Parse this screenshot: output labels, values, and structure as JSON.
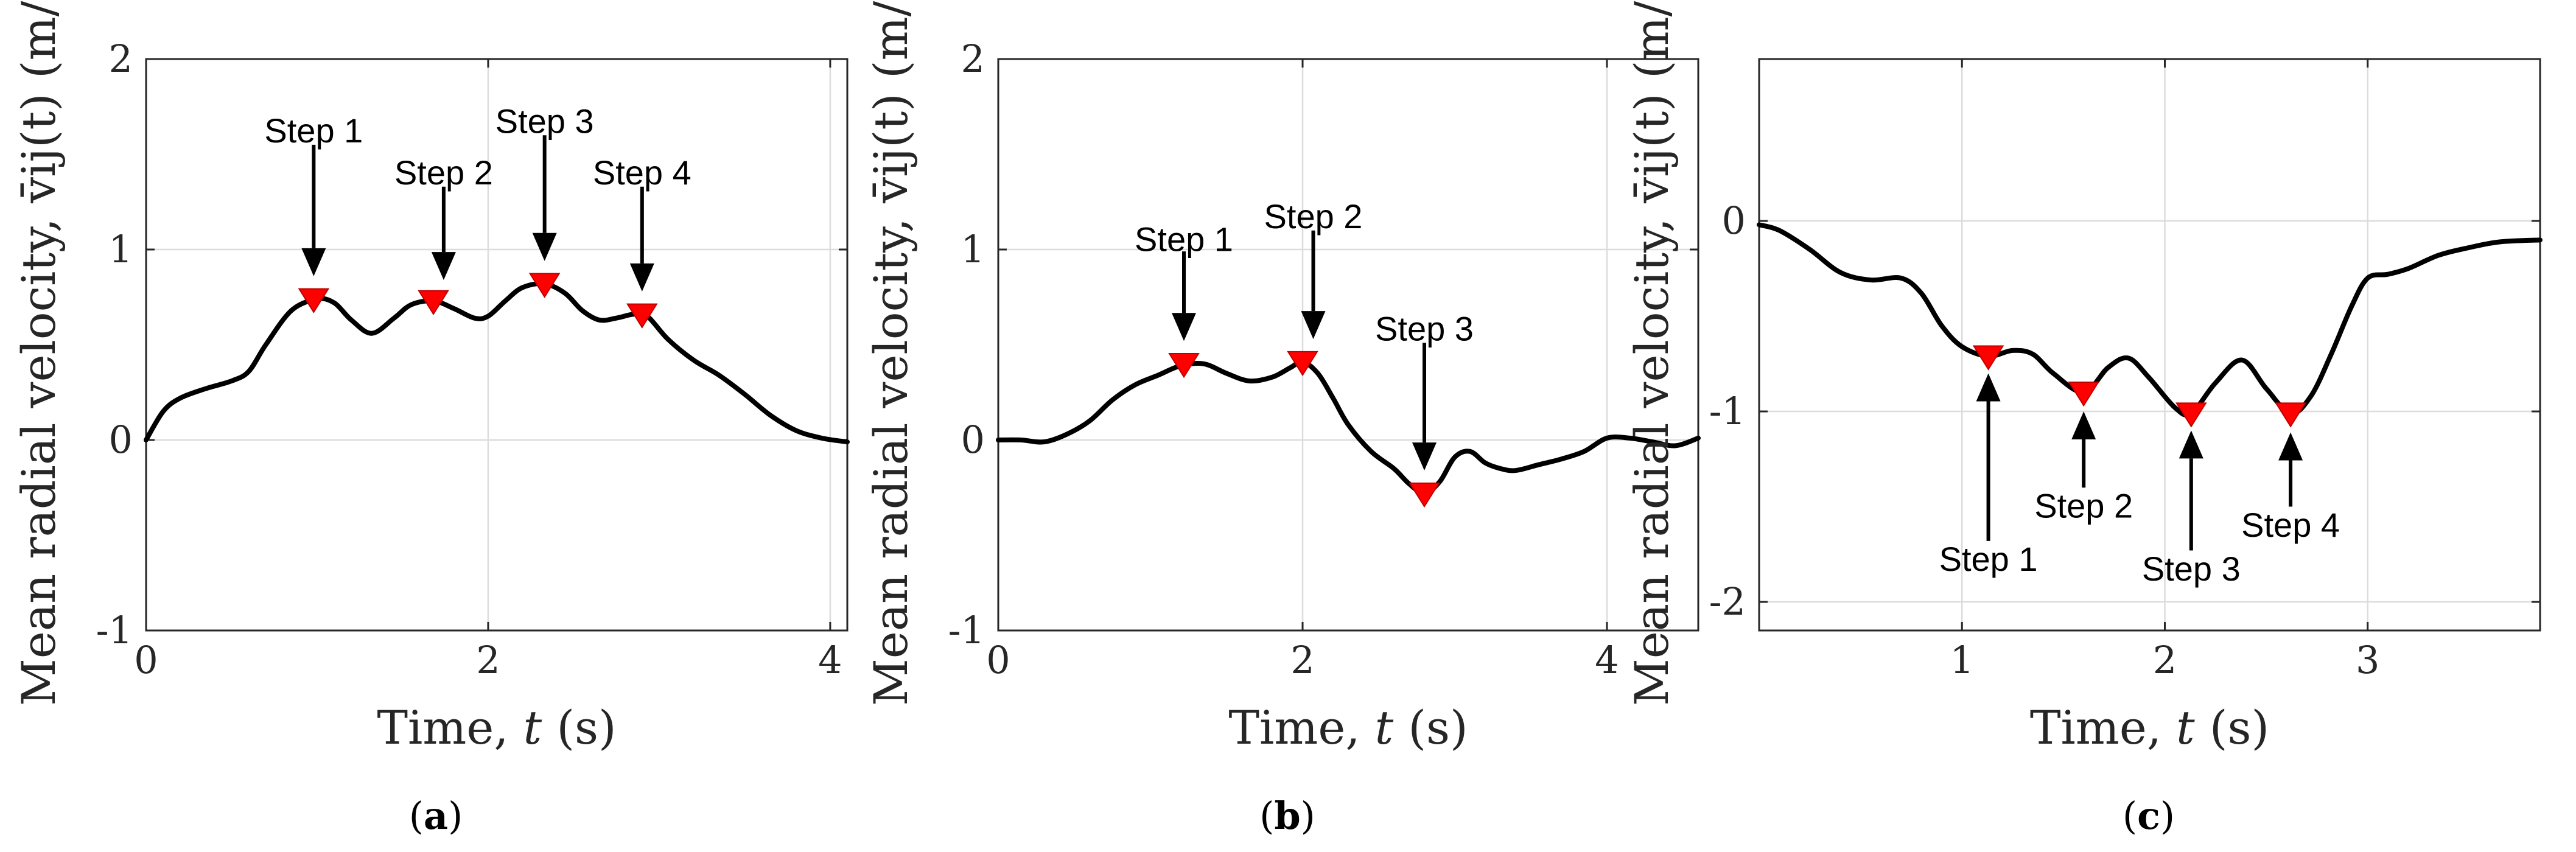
{
  "chart_data": [
    {
      "type": "line",
      "panel_label": "a",
      "xlabel": "Time, t (s)",
      "ylabel": "Mean radial velocity, v̄ij(t) (m/s)",
      "xlim": [
        0,
        4.1
      ],
      "ylim": [
        -1,
        2
      ],
      "xticks": [
        0,
        2,
        4
      ],
      "yticks": [
        -1,
        0,
        1,
        2
      ],
      "grid": true,
      "series": [
        {
          "x": [
            0,
            0.1,
            0.2,
            0.35,
            0.5,
            0.6,
            0.7,
            0.85,
            1.0,
            1.1,
            1.2,
            1.32,
            1.45,
            1.55,
            1.68,
            1.8,
            1.92,
            2.0,
            2.1,
            2.2,
            2.33,
            2.45,
            2.55,
            2.65,
            2.75,
            2.85,
            2.93,
            3.05,
            3.2,
            3.35,
            3.5,
            3.65,
            3.8,
            3.95,
            4.1
          ],
          "y": [
            0,
            0.15,
            0.22,
            0.27,
            0.31,
            0.36,
            0.5,
            0.68,
            0.74,
            0.72,
            0.63,
            0.56,
            0.64,
            0.71,
            0.73,
            0.69,
            0.64,
            0.65,
            0.73,
            0.8,
            0.82,
            0.77,
            0.68,
            0.63,
            0.64,
            0.66,
            0.65,
            0.53,
            0.42,
            0.34,
            0.24,
            0.13,
            0.05,
            0.01,
            -0.01
          ]
        }
      ],
      "markers": [
        {
          "x": 0.98,
          "y": 0.74,
          "label": "Step 1"
        },
        {
          "x": 1.68,
          "y": 0.73,
          "label": "Step 2"
        },
        {
          "x": 2.33,
          "y": 0.82,
          "label": "Step 3"
        },
        {
          "x": 2.9,
          "y": 0.66,
          "label": "Step 4"
        }
      ],
      "annotations": [
        {
          "text": "Step 1",
          "x": 0.98,
          "y": 1.62,
          "arrow_from_y": 1.55,
          "arrow_to_y": 0.86
        },
        {
          "text": "Step 2",
          "x": 1.74,
          "y": 1.4,
          "arrow_from_y": 1.33,
          "arrow_to_y": 0.84
        },
        {
          "text": "Step 3",
          "x": 2.33,
          "y": 1.67,
          "arrow_from_y": 1.6,
          "arrow_to_y": 0.94
        },
        {
          "text": "Step 4",
          "x": 2.9,
          "y": 1.4,
          "arrow_from_y": 1.33,
          "arrow_to_y": 0.78
        }
      ]
    },
    {
      "type": "line",
      "panel_label": "b",
      "xlabel": "Time, t (s)",
      "ylabel": "Mean radial velocity, v̄ij(t) (m/s)",
      "xlim": [
        0,
        4.6
      ],
      "ylim": [
        -1,
        2
      ],
      "xticks": [
        0,
        2,
        4
      ],
      "yticks": [
        -1,
        0,
        1,
        2
      ],
      "grid": true,
      "series": [
        {
          "x": [
            0,
            0.15,
            0.3,
            0.45,
            0.6,
            0.75,
            0.9,
            1.05,
            1.2,
            1.35,
            1.5,
            1.65,
            1.8,
            1.92,
            2.0,
            2.1,
            2.2,
            2.3,
            2.45,
            2.6,
            2.7,
            2.8,
            2.9,
            3.0,
            3.1,
            3.2,
            3.3,
            3.4,
            3.55,
            3.7,
            3.85,
            4.0,
            4.15,
            4.3,
            4.45,
            4.6
          ],
          "y": [
            0.0,
            0.0,
            -0.01,
            0.03,
            0.1,
            0.21,
            0.29,
            0.34,
            0.39,
            0.4,
            0.35,
            0.31,
            0.33,
            0.38,
            0.41,
            0.35,
            0.22,
            0.08,
            -0.06,
            -0.15,
            -0.23,
            -0.28,
            -0.22,
            -0.09,
            -0.06,
            -0.12,
            -0.15,
            -0.16,
            -0.13,
            -0.1,
            -0.06,
            0.01,
            0.01,
            -0.01,
            -0.03,
            0.01
          ]
        }
      ],
      "markers": [
        {
          "x": 1.22,
          "y": 0.4,
          "label": "Step 1"
        },
        {
          "x": 2.0,
          "y": 0.41,
          "label": "Step 2"
        },
        {
          "x": 2.8,
          "y": -0.28,
          "label": "Step 3"
        }
      ],
      "annotations": [
        {
          "text": "Step 1",
          "x": 1.22,
          "y": 1.05,
          "arrow_from_y": 0.99,
          "arrow_to_y": 0.52
        },
        {
          "text": "Step 2",
          "x": 2.07,
          "y": 1.17,
          "arrow_from_y": 1.1,
          "arrow_to_y": 0.53
        },
        {
          "text": "Step 3",
          "x": 2.8,
          "y": 0.58,
          "arrow_from_y": 0.51,
          "arrow_to_y": -0.16
        }
      ]
    },
    {
      "type": "line",
      "panel_label": "c",
      "xlabel": "Time, t (s)",
      "ylabel": "Mean radial velocity, v̄ij(t) (m/s)",
      "xlim": [
        0,
        3.85
      ],
      "ylim": [
        -2.15,
        0.85
      ],
      "xticks": [
        1,
        2,
        3
      ],
      "yticks": [
        -2,
        -1,
        0
      ],
      "grid": true,
      "series": [
        {
          "x": [
            0,
            0.1,
            0.25,
            0.4,
            0.55,
            0.7,
            0.8,
            0.9,
            1.0,
            1.13,
            1.25,
            1.35,
            1.45,
            1.6,
            1.72,
            1.82,
            1.92,
            2.05,
            2.13,
            2.25,
            2.38,
            2.5,
            2.62,
            2.72,
            2.82,
            2.92,
            3.0,
            3.1,
            3.2,
            3.35,
            3.5,
            3.65,
            3.85
          ],
          "y": [
            -0.02,
            -0.05,
            -0.15,
            -0.27,
            -0.31,
            -0.3,
            -0.38,
            -0.55,
            -0.66,
            -0.71,
            -0.68,
            -0.7,
            -0.8,
            -0.9,
            -0.77,
            -0.72,
            -0.82,
            -0.98,
            -1.01,
            -0.85,
            -0.73,
            -0.88,
            -1.01,
            -0.92,
            -0.7,
            -0.45,
            -0.3,
            -0.28,
            -0.25,
            -0.18,
            -0.14,
            -0.11,
            -0.1
          ]
        }
      ],
      "markers": [
        {
          "x": 1.13,
          "y": -0.71,
          "label": "Step 1"
        },
        {
          "x": 1.6,
          "y": -0.9,
          "label": "Step 2"
        },
        {
          "x": 2.13,
          "y": -1.01,
          "label": "Step 3"
        },
        {
          "x": 2.62,
          "y": -1.01,
          "label": "Step 4"
        }
      ],
      "annotations": [
        {
          "text": "Step 1",
          "x": 1.13,
          "y": -1.78,
          "arrow_from_y": -1.68,
          "arrow_to_y": -0.8
        },
        {
          "text": "Step 2",
          "x": 1.6,
          "y": -1.5,
          "arrow_from_y": -1.4,
          "arrow_to_y": -1.0
        },
        {
          "text": "Step 3",
          "x": 2.13,
          "y": -1.83,
          "arrow_from_y": -1.73,
          "arrow_to_y": -1.1
        },
        {
          "text": "Step 4",
          "x": 2.62,
          "y": -1.6,
          "arrow_from_y": -1.5,
          "arrow_to_y": -1.11
        }
      ]
    }
  ]
}
